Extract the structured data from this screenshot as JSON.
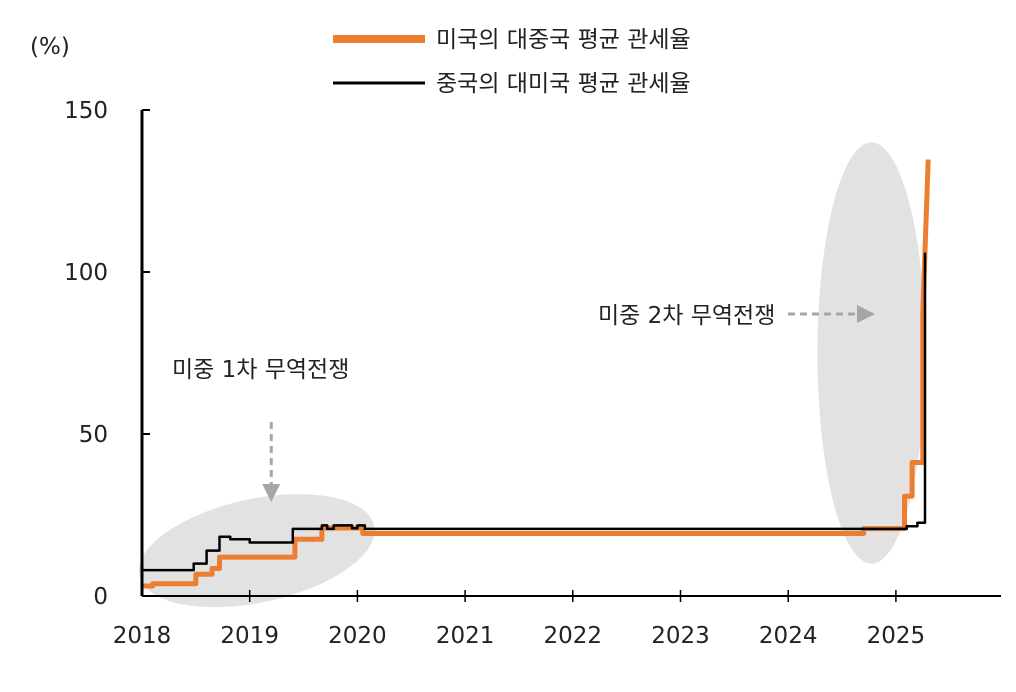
{
  "chart_data": {
    "type": "line",
    "unit_label": "(%)",
    "x_ticks": [
      "2018",
      "2019",
      "2020",
      "2021",
      "2022",
      "2023",
      "2024",
      "2025"
    ],
    "y_ticks": [
      "0",
      "50",
      "100",
      "150"
    ],
    "ylim": [
      0,
      150
    ],
    "xlim": [
      2018.0,
      2025.45
    ],
    "grid": false,
    "legend_position": "top-center",
    "series": [
      {
        "name": "미국의 대중국 평균 관세율",
        "color": "#ED7D31",
        "points": [
          [
            2018.0,
            3.1
          ],
          [
            2018.1,
            3.1
          ],
          [
            2018.1,
            3.8
          ],
          [
            2018.5,
            3.8
          ],
          [
            2018.5,
            6.7
          ],
          [
            2018.65,
            6.7
          ],
          [
            2018.65,
            8.5
          ],
          [
            2018.72,
            8.5
          ],
          [
            2018.72,
            12.0
          ],
          [
            2019.42,
            12.0
          ],
          [
            2019.42,
            17.5
          ],
          [
            2019.67,
            17.5
          ],
          [
            2019.67,
            21.0
          ],
          [
            2020.05,
            21.0
          ],
          [
            2020.05,
            19.3
          ],
          [
            2024.7,
            19.3
          ],
          [
            2024.7,
            20.8
          ],
          [
            2025.08,
            20.8
          ],
          [
            2025.08,
            30.8
          ],
          [
            2025.15,
            30.8
          ],
          [
            2025.15,
            41.2
          ],
          [
            2025.25,
            41.2
          ],
          [
            2025.25,
            87.0
          ],
          [
            2025.3,
            134.7
          ]
        ]
      },
      {
        "name": "중국의 대미국 평균 관세율",
        "color": "#000000",
        "points": [
          [
            2018.0,
            8.0
          ],
          [
            2018.48,
            8.0
          ],
          [
            2018.48,
            10.0
          ],
          [
            2018.6,
            10.0
          ],
          [
            2018.6,
            14.0
          ],
          [
            2018.72,
            14.0
          ],
          [
            2018.72,
            18.3
          ],
          [
            2018.82,
            18.3
          ],
          [
            2018.82,
            17.5
          ],
          [
            2019.0,
            17.5
          ],
          [
            2019.0,
            16.5
          ],
          [
            2019.4,
            16.5
          ],
          [
            2019.4,
            20.7
          ],
          [
            2019.67,
            20.7
          ],
          [
            2019.67,
            21.8
          ],
          [
            2019.72,
            21.8
          ],
          [
            2019.72,
            20.7
          ],
          [
            2019.78,
            20.7
          ],
          [
            2019.78,
            21.8
          ],
          [
            2019.95,
            21.8
          ],
          [
            2019.95,
            20.9
          ],
          [
            2020.0,
            20.9
          ],
          [
            2020.0,
            21.8
          ],
          [
            2020.07,
            21.8
          ],
          [
            2020.07,
            20.7
          ],
          [
            2025.1,
            20.7
          ],
          [
            2025.1,
            21.5
          ],
          [
            2025.2,
            21.5
          ],
          [
            2025.2,
            22.6
          ],
          [
            2025.27,
            22.6
          ],
          [
            2025.27,
            106.0
          ]
        ]
      }
    ],
    "annotations": [
      {
        "text": "미중 1차 무역전쟁",
        "target_x": 2019.2,
        "arrow": "down",
        "ellipse_x": [
          2017.95,
          2020.18
        ],
        "ellipse_y": [
          -2,
          30
        ]
      },
      {
        "text": "미중 2차 무역전쟁",
        "target_x": 2025.25,
        "arrow": "right",
        "ellipse_x": [
          2024.88,
          2025.78
        ],
        "ellipse_y": [
          10,
          140
        ]
      }
    ]
  }
}
